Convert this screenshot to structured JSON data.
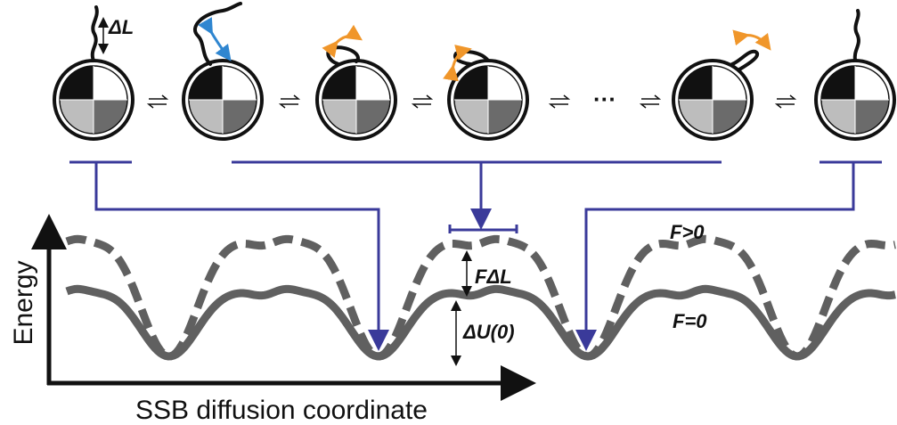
{
  "labels": {
    "delta_l": "ΔL",
    "dots": "···",
    "f_gt_0": "F>0",
    "f_delta_l": "FΔL",
    "delta_u0": "ΔU(0)",
    "f_eq_0": "F=0"
  },
  "axes": {
    "y_label": "Energy",
    "x_label": "SSB diffusion coordinate"
  }
}
